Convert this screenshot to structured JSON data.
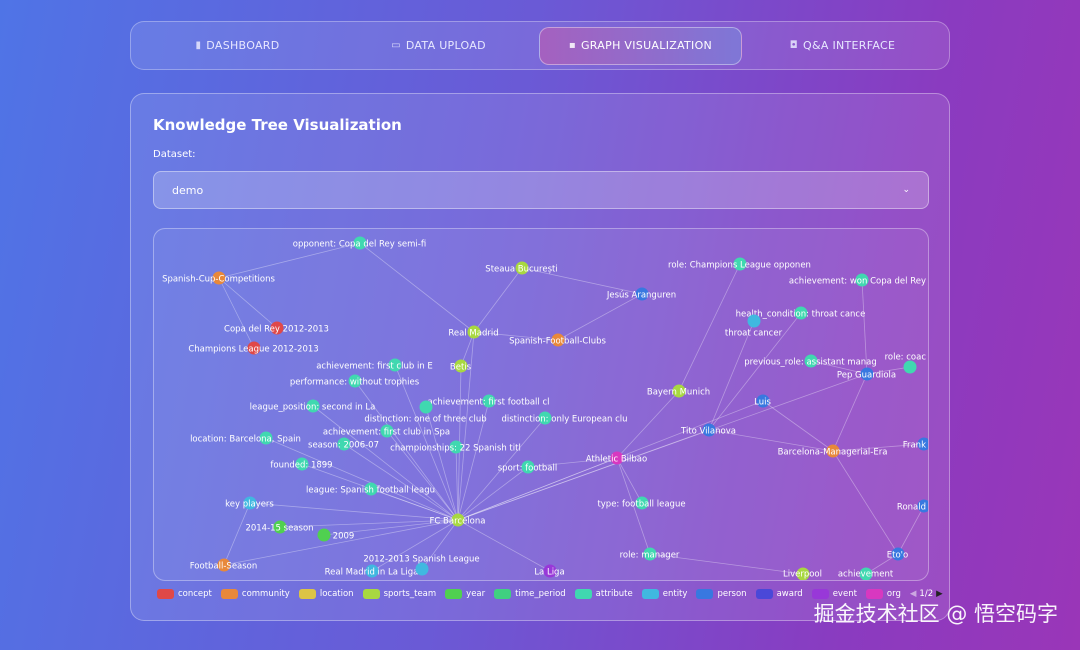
{
  "nav": {
    "tabs": [
      {
        "label": "DASHBOARD",
        "icon": "bar-chart-icon",
        "glyph": "▮"
      },
      {
        "label": "DATA UPLOAD",
        "icon": "upload-tray-icon",
        "glyph": "▭"
      },
      {
        "label": "GRAPH VISUALIZATION",
        "icon": "graph-icon",
        "glyph": "▪",
        "active": true
      },
      {
        "label": "Q&A INTERFACE",
        "icon": "robot-icon",
        "glyph": "◘"
      }
    ]
  },
  "panel": {
    "title": "Knowledge Tree Visualization",
    "dataset_label": "Dataset:",
    "dataset_value": "demo"
  },
  "legend": {
    "items": [
      {
        "label": "concept",
        "color": "#e04848"
      },
      {
        "label": "community",
        "color": "#e8883a"
      },
      {
        "label": "location",
        "color": "#dcc445"
      },
      {
        "label": "sports_team",
        "color": "#a8d840"
      },
      {
        "label": "year",
        "color": "#50d050"
      },
      {
        "label": "time_period",
        "color": "#40d080"
      },
      {
        "label": "attribute",
        "color": "#40d8b0"
      },
      {
        "label": "entity",
        "color": "#40b8e0"
      },
      {
        "label": "person",
        "color": "#3878e0"
      },
      {
        "label": "award",
        "color": "#4a48d8"
      },
      {
        "label": "event",
        "color": "#9838d8"
      },
      {
        "label": "org",
        "color": "#d838c0"
      }
    ],
    "page": "1/2"
  },
  "graph": {
    "nodes": [
      {
        "label": "opponent: Copa del Rey semi-fi",
        "type": "attribute"
      },
      {
        "label": "Spanish-Cup-Competitions",
        "type": "community"
      },
      {
        "label": "Steaua București",
        "type": "sports_team"
      },
      {
        "label": "Copa del Rey 2012-2013",
        "type": "concept"
      },
      {
        "label": "Champions League 2012-2013",
        "type": "concept"
      },
      {
        "label": "Real Madrid",
        "type": "sports_team"
      },
      {
        "label": "Spanish-Football-Clubs",
        "type": "community"
      },
      {
        "label": "Jesús Aranguren",
        "type": "person"
      },
      {
        "label": "role: Champions League opponen",
        "type": "attribute"
      },
      {
        "label": "achievement: won Copa del Rey",
        "type": "attribute"
      },
      {
        "label": "health_condition: throat cance",
        "type": "attribute"
      },
      {
        "label": "throat cancer",
        "type": "entity"
      },
      {
        "label": "previous_role: assistant manag",
        "type": "attribute"
      },
      {
        "label": "Pep Guardiola",
        "type": "person"
      },
      {
        "label": "role: coac",
        "type": "attribute"
      },
      {
        "label": "Bayern Munich",
        "type": "sports_team"
      },
      {
        "label": "Luis",
        "type": "person"
      },
      {
        "label": "Tito Vilanova",
        "type": "person"
      },
      {
        "label": "Barcelona-Managerial-Era",
        "type": "community"
      },
      {
        "label": "Athletic Bilbao",
        "type": "org"
      },
      {
        "label": "Betis",
        "type": "sports_team"
      },
      {
        "label": "achievement: first club in E",
        "type": "attribute"
      },
      {
        "label": "performance: without trophies",
        "type": "attribute"
      },
      {
        "label": "achievement: first football cl",
        "type": "attribute"
      },
      {
        "label": "league_position: second in La",
        "type": "attribute"
      },
      {
        "label": "distinction: one of three club",
        "type": "attribute"
      },
      {
        "label": "distinction: only European clu",
        "type": "attribute"
      },
      {
        "label": "achievement: first club in Spa",
        "type": "attribute"
      },
      {
        "label": "location: Barcelona, Spain",
        "type": "attribute"
      },
      {
        "label": "season: 2006-07",
        "type": "attribute"
      },
      {
        "label": "championships: 22 Spanish titl",
        "type": "attribute"
      },
      {
        "label": "founded: 1899",
        "type": "attribute"
      },
      {
        "label": "sport: football",
        "type": "attribute"
      },
      {
        "label": "league: Spanish football leagu",
        "type": "attribute"
      },
      {
        "label": "type: football league",
        "type": "attribute"
      },
      {
        "label": "key players",
        "type": "entity"
      },
      {
        "label": "FC Barcelona",
        "type": "sports_team"
      },
      {
        "label": "2014-15 season",
        "type": "year"
      },
      {
        "label": "2009",
        "type": "year"
      },
      {
        "label": "role: manager",
        "type": "attribute"
      },
      {
        "label": "Eto'o",
        "type": "person"
      },
      {
        "label": "Liverpool",
        "type": "sports_team"
      },
      {
        "label": "Frank",
        "type": "person"
      },
      {
        "label": "Ronald",
        "type": "person"
      },
      {
        "label": "Football-Season",
        "type": "community"
      },
      {
        "label": "Real Madrid in La Liga",
        "type": "entity"
      },
      {
        "label": "2012-2013 Spanish League",
        "type": "entity"
      },
      {
        "label": "La Liga",
        "type": "event"
      },
      {
        "label": "achievement",
        "type": "attribute"
      }
    ],
    "edges": [
      [
        36,
        20
      ],
      [
        36,
        21
      ],
      [
        36,
        22
      ],
      [
        36,
        23
      ],
      [
        36,
        24
      ],
      [
        36,
        25
      ],
      [
        36,
        26
      ],
      [
        36,
        27
      ],
      [
        36,
        28
      ],
      [
        36,
        29
      ],
      [
        36,
        30
      ],
      [
        36,
        31
      ],
      [
        36,
        32
      ],
      [
        36,
        33
      ],
      [
        36,
        35
      ],
      [
        36,
        37
      ],
      [
        36,
        38
      ],
      [
        36,
        5
      ],
      [
        36,
        19
      ],
      [
        36,
        17
      ],
      [
        36,
        16
      ],
      [
        36,
        13
      ],
      [
        36,
        44
      ],
      [
        36,
        45
      ],
      [
        36,
        46
      ],
      [
        36,
        47
      ],
      [
        1,
        3
      ],
      [
        1,
        4
      ],
      [
        1,
        0
      ],
      [
        5,
        6
      ],
      [
        6,
        7
      ],
      [
        7,
        2
      ],
      [
        5,
        2
      ],
      [
        19,
        34
      ],
      [
        19,
        39
      ],
      [
        19,
        15
      ],
      [
        17,
        18
      ],
      [
        16,
        18
      ],
      [
        13,
        18
      ],
      [
        18,
        40
      ],
      [
        18,
        42
      ],
      [
        40,
        43
      ],
      [
        40,
        48
      ],
      [
        13,
        12
      ],
      [
        13,
        14
      ],
      [
        13,
        9
      ],
      [
        17,
        10
      ],
      [
        17,
        11
      ],
      [
        15,
        8
      ],
      [
        41,
        39
      ],
      [
        0,
        5
      ],
      [
        20,
        5
      ],
      [
        44,
        35
      ],
      [
        19,
        32
      ]
    ]
  }
}
